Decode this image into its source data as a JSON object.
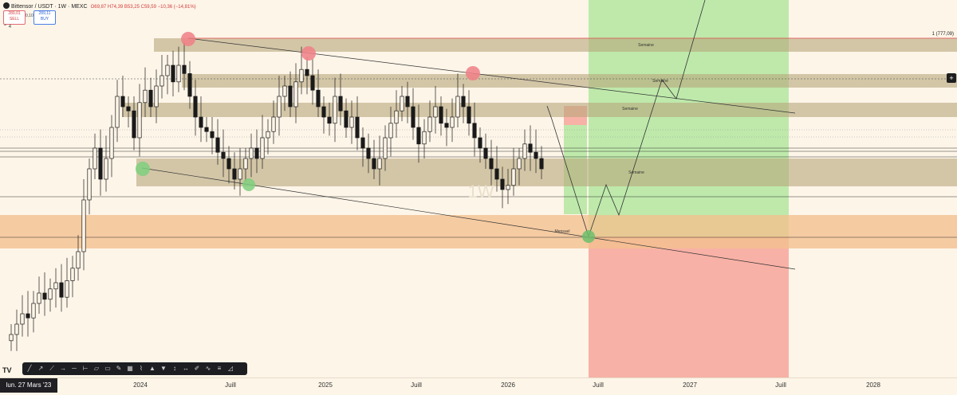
{
  "header": {
    "symbol": "Bittensor / USDT · 1W · MEXC",
    "ohlc": "O69,87 H74,39 B53,25 C59,59 −10,36 (−14,81%)",
    "sell_price": "289,01",
    "sell_label": "SELL",
    "spread": "0,10",
    "buy_price": "289,11",
    "buy_label": "BUY",
    "indicator_count": "4"
  },
  "price_scale_label": "1 (777,09)",
  "watermark": "1W",
  "zones": [
    {
      "label": "Semaine"
    },
    {
      "label": "Semaine"
    },
    {
      "label": "Semaine"
    },
    {
      "label": "Semaine"
    },
    {
      "label": "Mensuel"
    }
  ],
  "colors": {
    "background": "#fdf5e8",
    "zone": "#c8b894",
    "monthly_zone": "#f2c08f",
    "profit": "#b3e6a0",
    "loss": "#f7a59a",
    "bull_candle": "#1a1a1a",
    "bear_candle": "#1a1a1a",
    "resistance_marker": "#f0838a",
    "support_marker": "#7ecf7e"
  },
  "toolbar": {
    "icons": [
      "line-tool-icon",
      "ray-icon",
      "extended-line-icon",
      "arrow-icon",
      "horizontal-line-icon",
      "horizontal-ray-icon",
      "parallel-channel-icon",
      "rectangle-icon",
      "brush-icon",
      "table-icon",
      "path-icon",
      "long-position-icon",
      "short-position-icon",
      "price-range-icon",
      "date-range-icon",
      "pencil-icon",
      "curve-icon",
      "fib-icon",
      "measure-icon"
    ]
  },
  "chart_data": {
    "type": "candlestick",
    "interval": "1W",
    "x_ticks": [
      "lun. 27 Mars '23",
      "2024",
      "Juill",
      "2025",
      "Juill",
      "2026",
      "Juill",
      "2027",
      "Juill",
      "2028"
    ],
    "candles_ohlc_normalized_close": [
      0.2,
      0.25,
      0.3,
      0.28,
      0.35,
      0.4,
      0.37,
      0.42,
      0.45,
      0.38,
      0.46,
      0.52,
      0.6,
      0.85,
      1.0,
      1.1,
      0.95,
      1.05,
      1.2,
      1.35,
      1.3,
      1.28,
      1.15,
      1.32,
      1.38,
      1.3,
      1.4,
      1.45,
      1.5,
      1.42,
      1.5,
      1.46,
      1.35,
      1.25,
      1.2,
      1.18,
      1.15,
      1.08,
      1.05,
      1.0,
      0.95,
      1.0,
      1.05,
      1.1,
      1.05,
      1.15,
      1.18,
      1.25,
      1.35,
      1.4,
      1.3,
      1.42,
      1.48,
      1.45,
      1.38,
      1.3,
      1.25,
      1.22,
      1.35,
      1.28,
      1.2,
      1.25,
      1.15,
      1.1,
      1.05,
      1.0,
      1.05,
      1.15,
      1.22,
      1.28,
      1.35,
      1.3,
      1.2,
      1.12,
      1.18,
      1.25,
      1.3,
      1.22,
      1.2,
      1.25,
      1.35,
      1.3,
      1.22,
      1.15,
      1.1,
      1.05,
      1.0,
      0.95,
      0.9,
      0.92,
      1.0,
      1.05,
      1.12,
      1.08,
      1.05,
      1.0
    ],
    "last_close": "59,59"
  }
}
